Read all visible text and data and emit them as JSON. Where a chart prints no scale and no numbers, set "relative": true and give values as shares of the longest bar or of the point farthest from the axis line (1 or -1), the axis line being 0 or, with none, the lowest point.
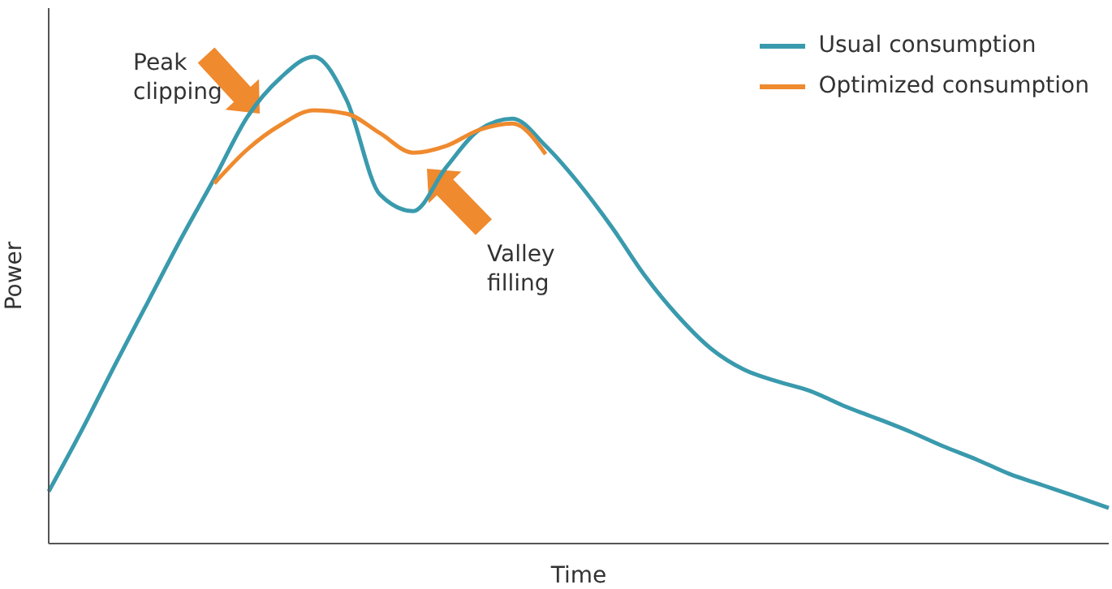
{
  "chart_data": {
    "type": "line",
    "relative": true,
    "xlabel": "Time",
    "ylabel": "Power",
    "legend": "top right",
    "marker": "none",
    "line_style": "solid",
    "categories": [
      null,
      null,
      null,
      null,
      null,
      null,
      null,
      null,
      null,
      null,
      null,
      null,
      null,
      null,
      null,
      null,
      null,
      null,
      null,
      null,
      null,
      null,
      null,
      null,
      null,
      null,
      null,
      null,
      null,
      null,
      null,
      null,
      null
    ],
    "series": [
      {
        "name": "Usual consumption",
        "color": "#3a9aad",
        "values": [
          0.107,
          0.233,
          0.367,
          0.497,
          0.627,
          0.75,
          0.877,
          0.957,
          1.0,
          0.91,
          0.717,
          0.683,
          0.773,
          0.85,
          0.873,
          0.817,
          0.74,
          0.65,
          0.55,
          0.467,
          0.4,
          0.357,
          0.333,
          0.313,
          0.283,
          0.257,
          0.23,
          0.2,
          0.173,
          0.143,
          0.12,
          0.097,
          0.073
        ]
      },
      {
        "name": "Optimized consumption",
        "color": "#ef8a2e",
        "values": [
          null,
          null,
          null,
          null,
          null,
          0.74,
          0.81,
          0.86,
          0.89,
          0.883,
          0.843,
          0.803,
          0.817,
          0.85,
          0.863,
          0.8,
          null,
          null,
          null,
          null,
          null,
          null,
          null,
          null,
          null,
          null,
          null,
          null,
          null,
          null,
          null,
          null,
          null
        ]
      }
    ],
    "annotations": [
      "Peak clipping",
      "Valley filling"
    ]
  }
}
